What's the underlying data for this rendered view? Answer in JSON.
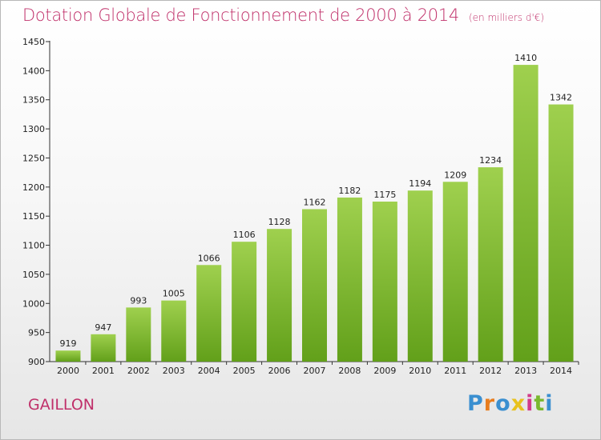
{
  "header": {
    "title": "Dotation Globale de Fonctionnement de 2000 à 2014",
    "unit": "(en milliers d'€)"
  },
  "footer": {
    "commune": "GAILLON",
    "logo": [
      "P",
      "r",
      "o",
      "x",
      "i",
      "t",
      "i"
    ]
  },
  "colors": {
    "title": "#c0306a",
    "bar_top": "#9fd04e",
    "bar_bottom": "#62a01a",
    "logo": [
      "#3a8fd0",
      "#e87d1e",
      "#3a8fd0",
      "#e8c21e",
      "#d23a8a",
      "#7ab82e",
      "#3a8fd0"
    ]
  },
  "chart_data": {
    "type": "bar",
    "title": "Dotation Globale de Fonctionnement de 2000 à 2014",
    "subtitle": "(en milliers d'€)",
    "categories": [
      "2000",
      "2001",
      "2002",
      "2003",
      "2004",
      "2005",
      "2006",
      "2007",
      "2008",
      "2009",
      "2010",
      "2011",
      "2012",
      "2013",
      "2014"
    ],
    "values": [
      919,
      947,
      993,
      1005,
      1066,
      1106,
      1128,
      1162,
      1182,
      1175,
      1194,
      1209,
      1234,
      1410,
      1342
    ],
    "ylim": [
      900,
      1450
    ],
    "yticks": [
      900,
      950,
      1000,
      1050,
      1100,
      1150,
      1200,
      1250,
      1300,
      1350,
      1400,
      1450
    ],
    "grid": false,
    "legend": "none"
  }
}
